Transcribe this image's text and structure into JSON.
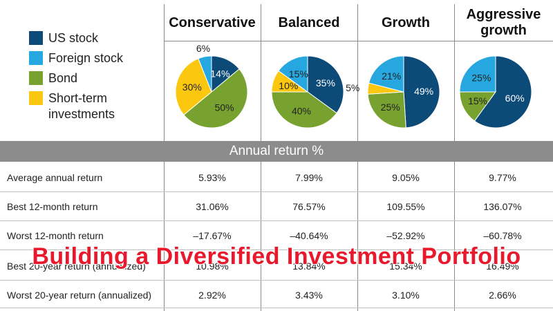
{
  "chart_data": {
    "type": "pie",
    "categories": [
      "US stock",
      "Foreign stock",
      "Bond",
      "Short-term investments"
    ],
    "colors": {
      "US stock": "#0c4a78",
      "Foreign stock": "#27a7df",
      "Bond": "#78a22f",
      "Short-term investments": "#fcc80f"
    },
    "portfolios": [
      {
        "name": "Conservative",
        "slices": [
          {
            "category": "US stock",
            "value": 14,
            "label": "14%"
          },
          {
            "category": "Bond",
            "value": 50,
            "label": "50%"
          },
          {
            "category": "Short-term investments",
            "value": 30,
            "label": "30%"
          },
          {
            "category": "Foreign stock",
            "value": 6,
            "label": "6%"
          }
        ]
      },
      {
        "name": "Balanced",
        "slices": [
          {
            "category": "US stock",
            "value": 35,
            "label": "35%"
          },
          {
            "category": "Bond",
            "value": 40,
            "label": "40%"
          },
          {
            "category": "Short-term investments",
            "value": 10,
            "label": "10%"
          },
          {
            "category": "Foreign stock",
            "value": 15,
            "label": "15%"
          }
        ]
      },
      {
        "name": "Growth",
        "slices": [
          {
            "category": "US stock",
            "value": 49,
            "label": "49%"
          },
          {
            "category": "Bond",
            "value": 25,
            "label": "25%"
          },
          {
            "category": "Short-term investments",
            "value": 5,
            "label": "5%"
          },
          {
            "category": "Foreign stock",
            "value": 21,
            "label": "21%"
          }
        ]
      },
      {
        "name": "Aggressive growth",
        "slices": [
          {
            "category": "US stock",
            "value": 60,
            "label": "60%"
          },
          {
            "category": "Bond",
            "value": 15,
            "label": "15%"
          },
          {
            "category": "Foreign stock",
            "value": 25,
            "label": "25%"
          }
        ]
      }
    ]
  },
  "legend": {
    "items": [
      {
        "label": "US stock"
      },
      {
        "label": "Foreign stock"
      },
      {
        "label": "Bond"
      },
      {
        "label": "Short-term\ninvestments"
      }
    ]
  },
  "columns": [
    "Conservative",
    "Balanced",
    "Growth",
    "Aggressive\ngrowth"
  ],
  "band_title": "Annual return %",
  "table": {
    "rows": [
      {
        "label": "Average annual return",
        "values": [
          "5.93%",
          "7.99%",
          "9.05%",
          "9.77%"
        ]
      },
      {
        "label": "Best 12-month return",
        "values": [
          "31.06%",
          "76.57%",
          "109.55%",
          "136.07%"
        ]
      },
      {
        "label": "Worst 12-month return",
        "values": [
          "–17.67%",
          "–40.64%",
          "–52.92%",
          "–60.78%"
        ]
      },
      {
        "label": "Best 20-year return (annualized)",
        "values": [
          "10.98%",
          "13.84%",
          "15.34%",
          "16.49%"
        ]
      },
      {
        "label": "Worst 20-year return (annualized)",
        "values": [
          "2.92%",
          "3.43%",
          "3.10%",
          "2.66%"
        ]
      }
    ]
  },
  "overlay_title": "Building a Diversified Investment Portfolio"
}
